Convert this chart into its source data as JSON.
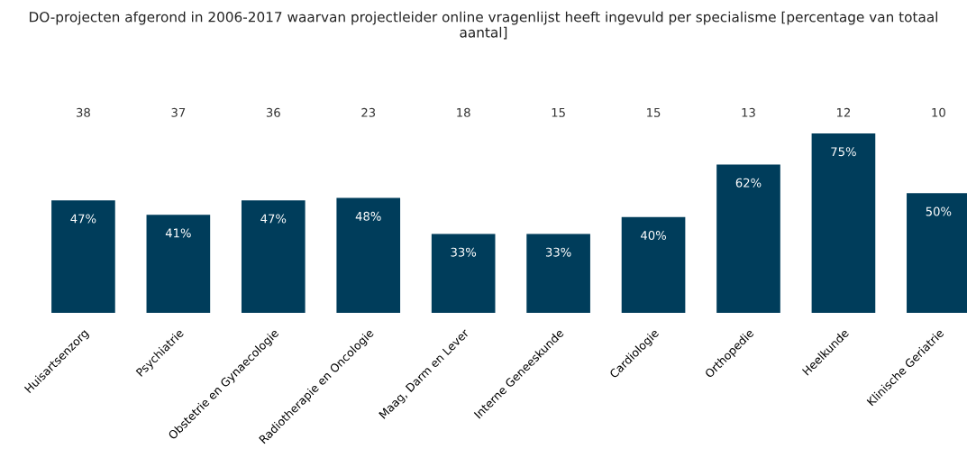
{
  "chart_data": {
    "type": "bar",
    "title": "DO-projecten afgerond in 2006-2017 waarvan projectleider online vragenlijst heeft ingevuld per specialisme [percentage van totaal aantal]",
    "categories": [
      "Huisartsenzorg",
      "Psychiatrie",
      "Obstetrie en Gynaecologie",
      "Radiotherapie en Oncologie",
      "Maag, Darm en Lever",
      "Interne Geneeskunde",
      "Cardiologie",
      "Orthopedie",
      "Heelkunde",
      "Klinische Geriatrie"
    ],
    "values": [
      47,
      41,
      47,
      48,
      33,
      33,
      40,
      62,
      75,
      50
    ],
    "value_labels": [
      "47%",
      "41%",
      "47%",
      "48%",
      "33%",
      "33%",
      "40%",
      "62%",
      "75%",
      "50%"
    ],
    "color": "#003d5b",
    "annotations": [
      "38",
      "37",
      "36",
      "23",
      "18",
      "15",
      "15",
      "13",
      "12",
      "10"
    ],
    "grid": false,
    "legend": false
  }
}
